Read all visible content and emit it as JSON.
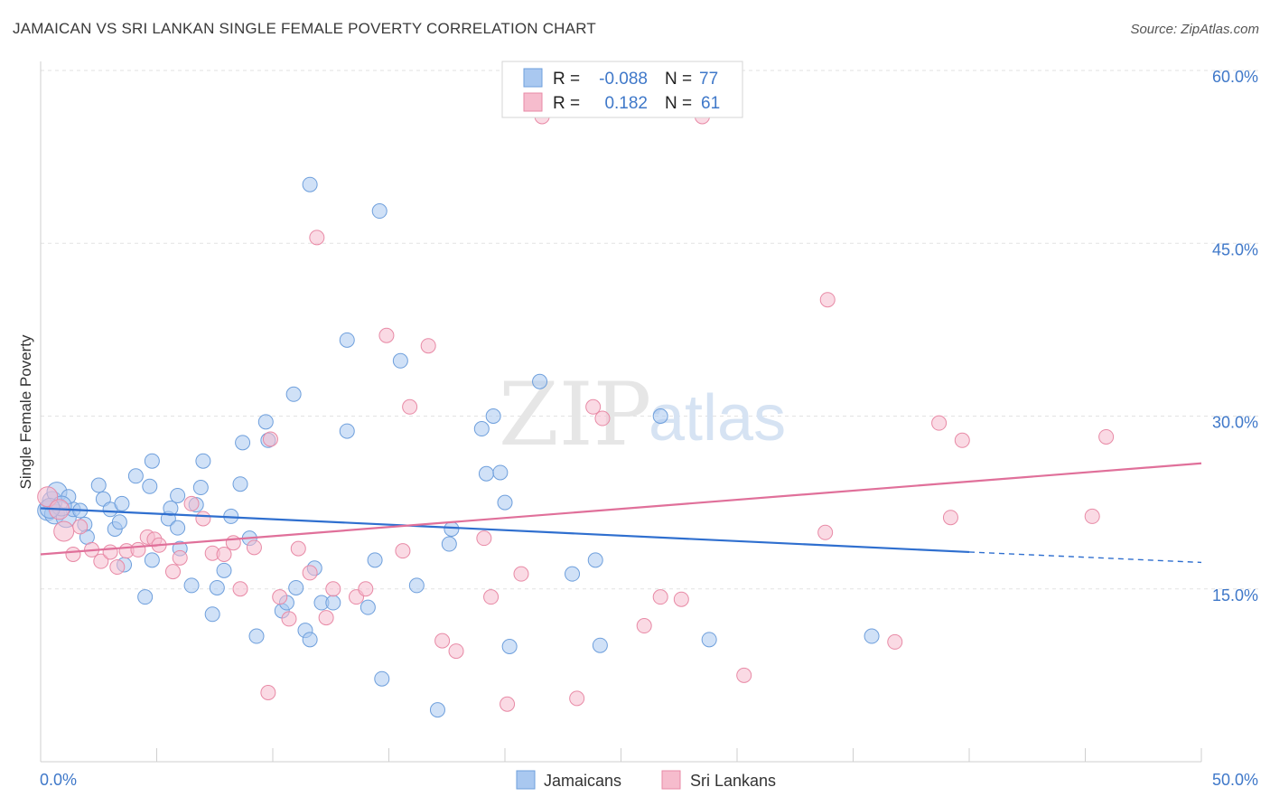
{
  "title": "JAMAICAN VS SRI LANKAN SINGLE FEMALE POVERTY CORRELATION CHART",
  "source": "Source: ZipAtlas.com",
  "watermark": {
    "zip": "ZIP",
    "atlas": "atlas"
  },
  "legend": {
    "r_label": "R =",
    "n_label": "N =",
    "rows": [
      {
        "r": "-0.088",
        "n": "77",
        "color": "#a9c8f0"
      },
      {
        "r": "0.182",
        "n": "61",
        "color": "#f6bccd"
      }
    ]
  },
  "bottom_legend": [
    {
      "label": "Jamaicans",
      "color": "#a9c8f0"
    },
    {
      "label": "Sri Lankans",
      "color": "#f6bccd"
    }
  ],
  "chart_data": {
    "type": "scatter",
    "title": "JAMAICAN VS SRI LANKAN SINGLE FEMALE POVERTY CORRELATION CHART",
    "xlabel": "",
    "ylabel": "Single Female Poverty",
    "xlim": [
      0,
      50
    ],
    "ylim": [
      0,
      60
    ],
    "x_tick_labels": [
      "0.0%",
      "50.0%"
    ],
    "y_ticks": [
      15,
      30,
      45,
      60
    ],
    "y_tick_labels": [
      "15.0%",
      "30.0%",
      "45.0%",
      "60.0%"
    ],
    "grid": "horizontal dashed",
    "legend_position": "top-center",
    "series": [
      {
        "name": "Jamaicans",
        "color": "#a9c8f0",
        "stroke": "#6e9fdc",
        "line_color": "#2f6fcf",
        "trend": {
          "x_start": 0,
          "y_start": 22.0,
          "x_end": 40,
          "y_end": 18.2,
          "dash_to_x": 50,
          "dash_to_y": 17.3
        },
        "points": [
          [
            0.3,
            21.8
          ],
          [
            0.5,
            22.6
          ],
          [
            0.7,
            23.4
          ],
          [
            0.6,
            21.5
          ],
          [
            1.1,
            21.2
          ],
          [
            1.4,
            21.9
          ],
          [
            1.7,
            21.8
          ],
          [
            1.9,
            20.6
          ],
          [
            2.0,
            19.5
          ],
          [
            2.5,
            24.0
          ],
          [
            2.7,
            22.8
          ],
          [
            3.2,
            20.2
          ],
          [
            3.0,
            21.9
          ],
          [
            3.4,
            20.8
          ],
          [
            3.5,
            22.4
          ],
          [
            3.6,
            17.1
          ],
          [
            4.1,
            24.8
          ],
          [
            4.5,
            14.3
          ],
          [
            4.7,
            23.9
          ],
          [
            4.8,
            17.5
          ],
          [
            5.5,
            21.1
          ],
          [
            5.6,
            22.0
          ],
          [
            5.9,
            23.1
          ],
          [
            5.9,
            20.3
          ],
          [
            6.0,
            18.5
          ],
          [
            6.5,
            15.3
          ],
          [
            6.7,
            22.3
          ],
          [
            6.9,
            23.8
          ],
          [
            7.4,
            12.8
          ],
          [
            7.6,
            15.1
          ],
          [
            7.9,
            16.6
          ],
          [
            8.2,
            21.3
          ],
          [
            8.6,
            24.1
          ],
          [
            8.7,
            27.7
          ],
          [
            9.0,
            19.4
          ],
          [
            9.3,
            10.9
          ],
          [
            9.7,
            29.5
          ],
          [
            9.8,
            27.9
          ],
          [
            10.4,
            13.1
          ],
          [
            10.6,
            13.8
          ],
          [
            10.9,
            31.9
          ],
          [
            11.0,
            15.1
          ],
          [
            11.4,
            11.4
          ],
          [
            11.6,
            10.6
          ],
          [
            11.8,
            16.8
          ],
          [
            12.1,
            13.8
          ],
          [
            12.6,
            13.8
          ],
          [
            13.2,
            28.7
          ],
          [
            13.2,
            36.6
          ],
          [
            14.1,
            13.4
          ],
          [
            14.4,
            17.5
          ],
          [
            14.7,
            7.2
          ],
          [
            15.5,
            34.8
          ],
          [
            16.2,
            15.3
          ],
          [
            17.1,
            4.5
          ],
          [
            17.6,
            18.9
          ],
          [
            17.7,
            20.2
          ],
          [
            19.0,
            28.9
          ],
          [
            19.2,
            25.0
          ],
          [
            19.5,
            30.0
          ],
          [
            19.8,
            25.1
          ],
          [
            20.0,
            22.5
          ],
          [
            20.2,
            10.0
          ],
          [
            21.5,
            33.0
          ],
          [
            22.9,
            16.3
          ],
          [
            23.9,
            17.5
          ],
          [
            24.1,
            10.1
          ],
          [
            26.7,
            30.0
          ],
          [
            28.8,
            10.6
          ],
          [
            35.8,
            10.9
          ],
          [
            11.6,
            50.1
          ],
          [
            14.6,
            47.8
          ],
          [
            7.0,
            26.1
          ],
          [
            4.8,
            26.1
          ],
          [
            1.2,
            23.0
          ],
          [
            0.9,
            22.2
          ],
          [
            0.4,
            22.0
          ]
        ]
      },
      {
        "name": "Sri Lankans",
        "color": "#f6bccd",
        "stroke": "#e88aa6",
        "line_color": "#e0709a",
        "trend": {
          "x_start": 0,
          "y_start": 18.0,
          "x_end": 50,
          "y_end": 25.9
        },
        "points": [
          [
            0.3,
            23.0
          ],
          [
            0.8,
            21.9
          ],
          [
            1.4,
            18.0
          ],
          [
            1.7,
            20.4
          ],
          [
            2.2,
            18.4
          ],
          [
            2.6,
            17.4
          ],
          [
            3.0,
            18.2
          ],
          [
            3.3,
            16.9
          ],
          [
            3.7,
            18.3
          ],
          [
            4.2,
            18.4
          ],
          [
            4.6,
            19.5
          ],
          [
            4.9,
            19.3
          ],
          [
            5.1,
            18.8
          ],
          [
            5.7,
            16.5
          ],
          [
            6.0,
            17.7
          ],
          [
            6.5,
            22.4
          ],
          [
            7.0,
            21.1
          ],
          [
            7.4,
            18.1
          ],
          [
            7.9,
            18.0
          ],
          [
            8.3,
            19.0
          ],
          [
            8.6,
            15.0
          ],
          [
            9.2,
            18.6
          ],
          [
            9.8,
            6.0
          ],
          [
            9.9,
            28.0
          ],
          [
            10.3,
            14.3
          ],
          [
            10.7,
            12.4
          ],
          [
            11.1,
            18.5
          ],
          [
            11.6,
            16.4
          ],
          [
            11.9,
            45.5
          ],
          [
            12.3,
            12.5
          ],
          [
            12.6,
            15.0
          ],
          [
            13.6,
            14.3
          ],
          [
            14.0,
            15.0
          ],
          [
            14.9,
            37.0
          ],
          [
            15.6,
            18.3
          ],
          [
            15.9,
            30.8
          ],
          [
            16.7,
            36.1
          ],
          [
            17.3,
            10.5
          ],
          [
            17.9,
            9.6
          ],
          [
            19.1,
            19.4
          ],
          [
            19.4,
            14.3
          ],
          [
            20.1,
            5.0
          ],
          [
            20.7,
            16.3
          ],
          [
            21.6,
            56.0
          ],
          [
            23.1,
            5.5
          ],
          [
            23.8,
            30.8
          ],
          [
            24.2,
            29.8
          ],
          [
            26.0,
            11.8
          ],
          [
            26.7,
            14.3
          ],
          [
            27.6,
            14.1
          ],
          [
            28.5,
            56.0
          ],
          [
            30.3,
            7.5
          ],
          [
            33.8,
            19.9
          ],
          [
            33.9,
            40.1
          ],
          [
            36.8,
            10.4
          ],
          [
            38.7,
            29.4
          ],
          [
            39.2,
            21.2
          ],
          [
            39.7,
            27.9
          ],
          [
            45.3,
            21.3
          ],
          [
            45.9,
            28.2
          ],
          [
            1.0,
            20.0
          ]
        ]
      }
    ]
  }
}
